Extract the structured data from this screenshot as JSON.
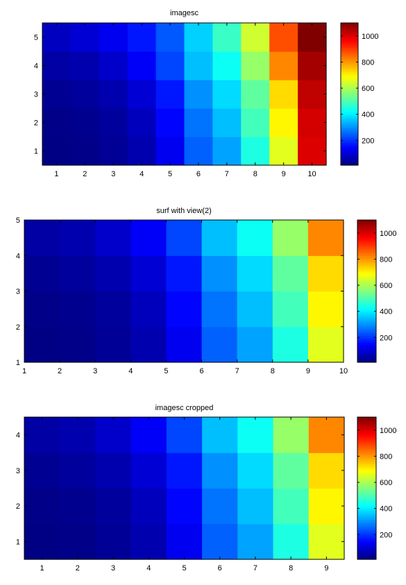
{
  "colormap": "jet",
  "chart_data": [
    {
      "type": "heatmap",
      "title": "imagesc",
      "x_ticks": [
        "1",
        "2",
        "3",
        "4",
        "5",
        "6",
        "7",
        "8",
        "9",
        "10"
      ],
      "y_ticks": [
        "1",
        "2",
        "3",
        "4",
        "5"
      ],
      "xlim": [
        0.5,
        10.5
      ],
      "ylim": [
        0.5,
        5.5
      ],
      "clim": [
        10,
        1100
      ],
      "colorbar_ticks": [
        "200",
        "400",
        "600",
        "800",
        "1000"
      ],
      "values": [
        [
          15,
          20,
          35,
          60,
          130,
          250,
          320,
          450,
          660,
          1000
        ],
        [
          20,
          25,
          40,
          75,
          150,
          270,
          350,
          490,
          700,
          1010
        ],
        [
          30,
          40,
          60,
          100,
          170,
          300,
          380,
          520,
          730,
          1030
        ],
        [
          50,
          60,
          90,
          140,
          220,
          350,
          430,
          580,
          820,
          1060
        ],
        [
          80,
          100,
          130,
          170,
          240,
          370,
          480,
          640,
          880,
          1100
        ]
      ]
    },
    {
      "type": "heatmap",
      "title": "surf with view(2)",
      "x_ticks": [
        "1",
        "2",
        "3",
        "4",
        "5",
        "6",
        "7",
        "8",
        "9",
        "10"
      ],
      "y_ticks": [
        "1",
        "2",
        "3",
        "4",
        "5"
      ],
      "xlim": [
        1,
        10
      ],
      "ylim": [
        1,
        5
      ],
      "clim": [
        10,
        1100
      ],
      "colorbar_ticks": [
        "200",
        "400",
        "600",
        "800",
        "1000"
      ],
      "values": [
        [
          15,
          20,
          35,
          60,
          130,
          250,
          320,
          450,
          660
        ],
        [
          20,
          25,
          40,
          75,
          150,
          270,
          350,
          490,
          700
        ],
        [
          30,
          40,
          60,
          100,
          170,
          300,
          380,
          520,
          730
        ],
        [
          50,
          60,
          90,
          140,
          220,
          350,
          430,
          580,
          820
        ]
      ]
    },
    {
      "type": "heatmap",
      "title": "imagesc cropped",
      "x_ticks": [
        "1",
        "2",
        "3",
        "4",
        "5",
        "6",
        "7",
        "8",
        "9"
      ],
      "y_ticks": [
        "1",
        "2",
        "3",
        "4"
      ],
      "xlim": [
        0.5,
        9.5
      ],
      "ylim": [
        0.5,
        4.5
      ],
      "clim": [
        10,
        1100
      ],
      "colorbar_ticks": [
        "200",
        "400",
        "600",
        "800",
        "1000"
      ],
      "values": [
        [
          15,
          20,
          35,
          60,
          130,
          250,
          320,
          450,
          660
        ],
        [
          20,
          25,
          40,
          75,
          150,
          270,
          350,
          490,
          700
        ],
        [
          30,
          40,
          60,
          100,
          170,
          300,
          380,
          520,
          730
        ],
        [
          50,
          60,
          90,
          140,
          220,
          350,
          430,
          580,
          820
        ]
      ]
    }
  ]
}
